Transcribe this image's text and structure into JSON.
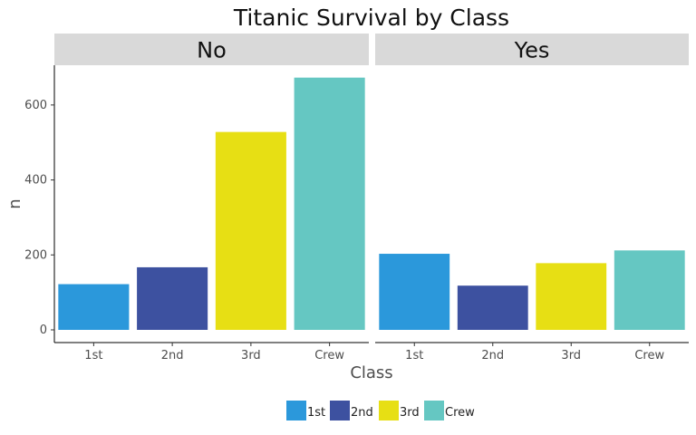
{
  "chart_data": {
    "type": "bar",
    "title": "Titanic Survival by Class",
    "xlabel": "Class",
    "ylabel": "n",
    "categories": [
      "1st",
      "2nd",
      "3rd",
      "Crew"
    ],
    "colors": {
      "1st": "#2B98DB",
      "2nd": "#3D51A0",
      "3rd": "#E7DF14",
      "Crew": "#65C7C2"
    },
    "facets": [
      {
        "label": "No",
        "values": [
          122,
          167,
          528,
          673
        ]
      },
      {
        "label": "Yes",
        "values": [
          203,
          118,
          178,
          212
        ]
      }
    ],
    "yticks": [
      0,
      200,
      400,
      600
    ],
    "ylim": [
      0,
      706
    ],
    "grid": false,
    "legend": {
      "position": "bottom",
      "entries": [
        "1st",
        "2nd",
        "3rd",
        "Crew"
      ]
    }
  }
}
